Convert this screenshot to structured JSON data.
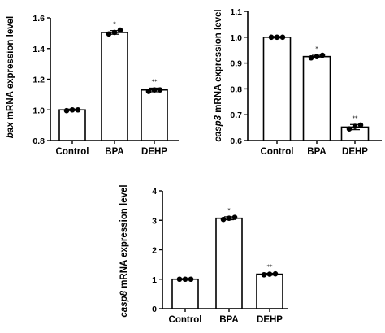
{
  "chart_data": [
    {
      "type": "bar",
      "gene": "bax",
      "ylabel_rest": " mRNA expression level",
      "categories": [
        "Control",
        "BPA",
        "DEHP"
      ],
      "values": [
        1.0,
        1.505,
        1.13
      ],
      "errors": [
        0.005,
        0.012,
        0.012
      ],
      "points": [
        [
          0.995,
          1.0,
          1.0
        ],
        [
          1.495,
          1.505,
          1.52
        ],
        [
          1.12,
          1.13,
          1.13
        ]
      ],
      "significance": [
        "",
        "*",
        "**"
      ],
      "ylim": [
        0.8,
        1.6
      ],
      "yticks": [
        "0.8",
        "1.0",
        "1.2",
        "1.4",
        "1.6"
      ],
      "grid": false
    },
    {
      "type": "bar",
      "gene": "casp3",
      "ylabel_rest": " mRNA expression level",
      "categories": [
        "Control",
        "BPA",
        "DEHP"
      ],
      "values": [
        1.0,
        0.925,
        0.652
      ],
      "errors": [
        0.003,
        0.005,
        0.01
      ],
      "points": [
        [
          1.0,
          1.0,
          1.0
        ],
        [
          0.92,
          0.925,
          0.93
        ],
        [
          0.645,
          0.655,
          0.66
        ]
      ],
      "significance": [
        "",
        "*",
        "**"
      ],
      "ylim": [
        0.6,
        1.1
      ],
      "yticks": [
        "0.6",
        "0.7",
        "0.8",
        "0.9",
        "1.0",
        "1.1"
      ],
      "grid": false
    },
    {
      "type": "bar",
      "gene": "casp8",
      "ylabel_rest": " mRNA expression level",
      "categories": [
        "Control",
        "BPA",
        "DEHP"
      ],
      "values": [
        1.0,
        3.07,
        1.17
      ],
      "errors": [
        0.02,
        0.05,
        0.03
      ],
      "points": [
        [
          1.0,
          1.0,
          1.0
        ],
        [
          3.03,
          3.07,
          3.1
        ],
        [
          1.15,
          1.17,
          1.18
        ]
      ],
      "significance": [
        "",
        "*",
        "**"
      ],
      "ylim": [
        0,
        4
      ],
      "yticks": [
        "0",
        "1",
        "2",
        "3",
        "4"
      ],
      "grid": false
    }
  ]
}
